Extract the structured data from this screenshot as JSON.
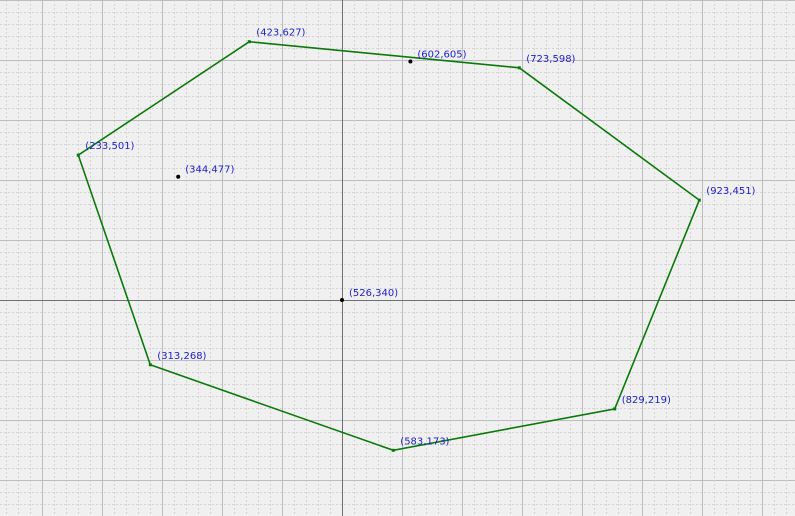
{
  "polygon": {
    "color": "#0a7a0a",
    "vertices": [
      {
        "x": 423,
        "y": 627,
        "label": "(423,627)"
      },
      {
        "x": 723,
        "y": 598,
        "label": "(723,598)"
      },
      {
        "x": 923,
        "y": 451,
        "label": "(923,451)"
      },
      {
        "x": 829,
        "y": 219,
        "label": "(829,219)"
      },
      {
        "x": 583,
        "y": 173,
        "label": "(583,173)"
      },
      {
        "x": 313,
        "y": 268,
        "label": "(313,268)"
      },
      {
        "x": 233,
        "y": 501,
        "label": "(233,501)"
      }
    ]
  },
  "points": [
    {
      "x": 602,
      "y": 605,
      "label": "(602,605)"
    },
    {
      "x": 344,
      "y": 477,
      "label": "(344,477)"
    },
    {
      "x": 526,
      "y": 340,
      "label": "(526,340)"
    }
  ],
  "colors": {
    "background": "#f0f0f0",
    "grid_minor": "#d4d4d4",
    "grid_major": "#bdbdbd",
    "axis": "#707070",
    "label": "#1f1fcc",
    "point": "#000000"
  }
}
